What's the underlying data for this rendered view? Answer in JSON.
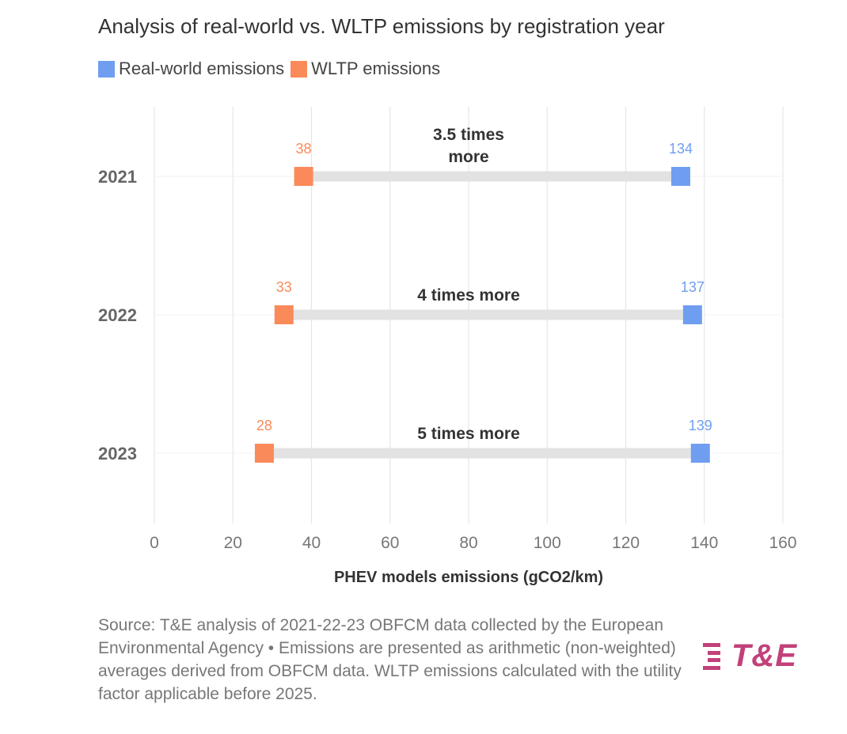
{
  "header": {
    "title": "Analysis of real-world vs. WLTP emissions by registration year"
  },
  "legend": [
    {
      "label": "Real-world emissions",
      "color": "#6f9ef0"
    },
    {
      "label": "WLTP emissions",
      "color": "#fa8a5a"
    }
  ],
  "chart_data": {
    "type": "dumbbell",
    "title": "Analysis of real-world vs. WLTP emissions by registration year",
    "xlabel": "PHEV models emissions (gCO2/km)",
    "ylabel": "",
    "xlim": [
      0,
      160
    ],
    "xticks": [
      0,
      20,
      40,
      60,
      80,
      100,
      120,
      140,
      160
    ],
    "categories": [
      "2021",
      "2022",
      "2023"
    ],
    "series": [
      {
        "name": "Real-world emissions",
        "color": "#6f9ef0",
        "values": [
          134,
          137,
          139
        ]
      },
      {
        "name": "WLTP emissions",
        "color": "#fa8a5a",
        "values": [
          38,
          33,
          28
        ]
      }
    ],
    "annotations": [
      {
        "category": "2021",
        "lines": [
          "3.5 times",
          "more"
        ]
      },
      {
        "category": "2022",
        "lines": [
          "4 times more"
        ]
      },
      {
        "category": "2023",
        "lines": [
          "5 times more"
        ]
      }
    ],
    "grid": true,
    "legend_position": "top-left"
  },
  "footer": {
    "source": "Source: T&E analysis of 2021-22-23 OBFCM data collected by the European Environmental Agency • Emissions are presented as arithmetic (non-weighted) averages derived from OBFCM data. WLTP emissions calculated with the utility factor applicable before 2025."
  },
  "logo": {
    "text": "T&E",
    "color": "#c2417a"
  }
}
